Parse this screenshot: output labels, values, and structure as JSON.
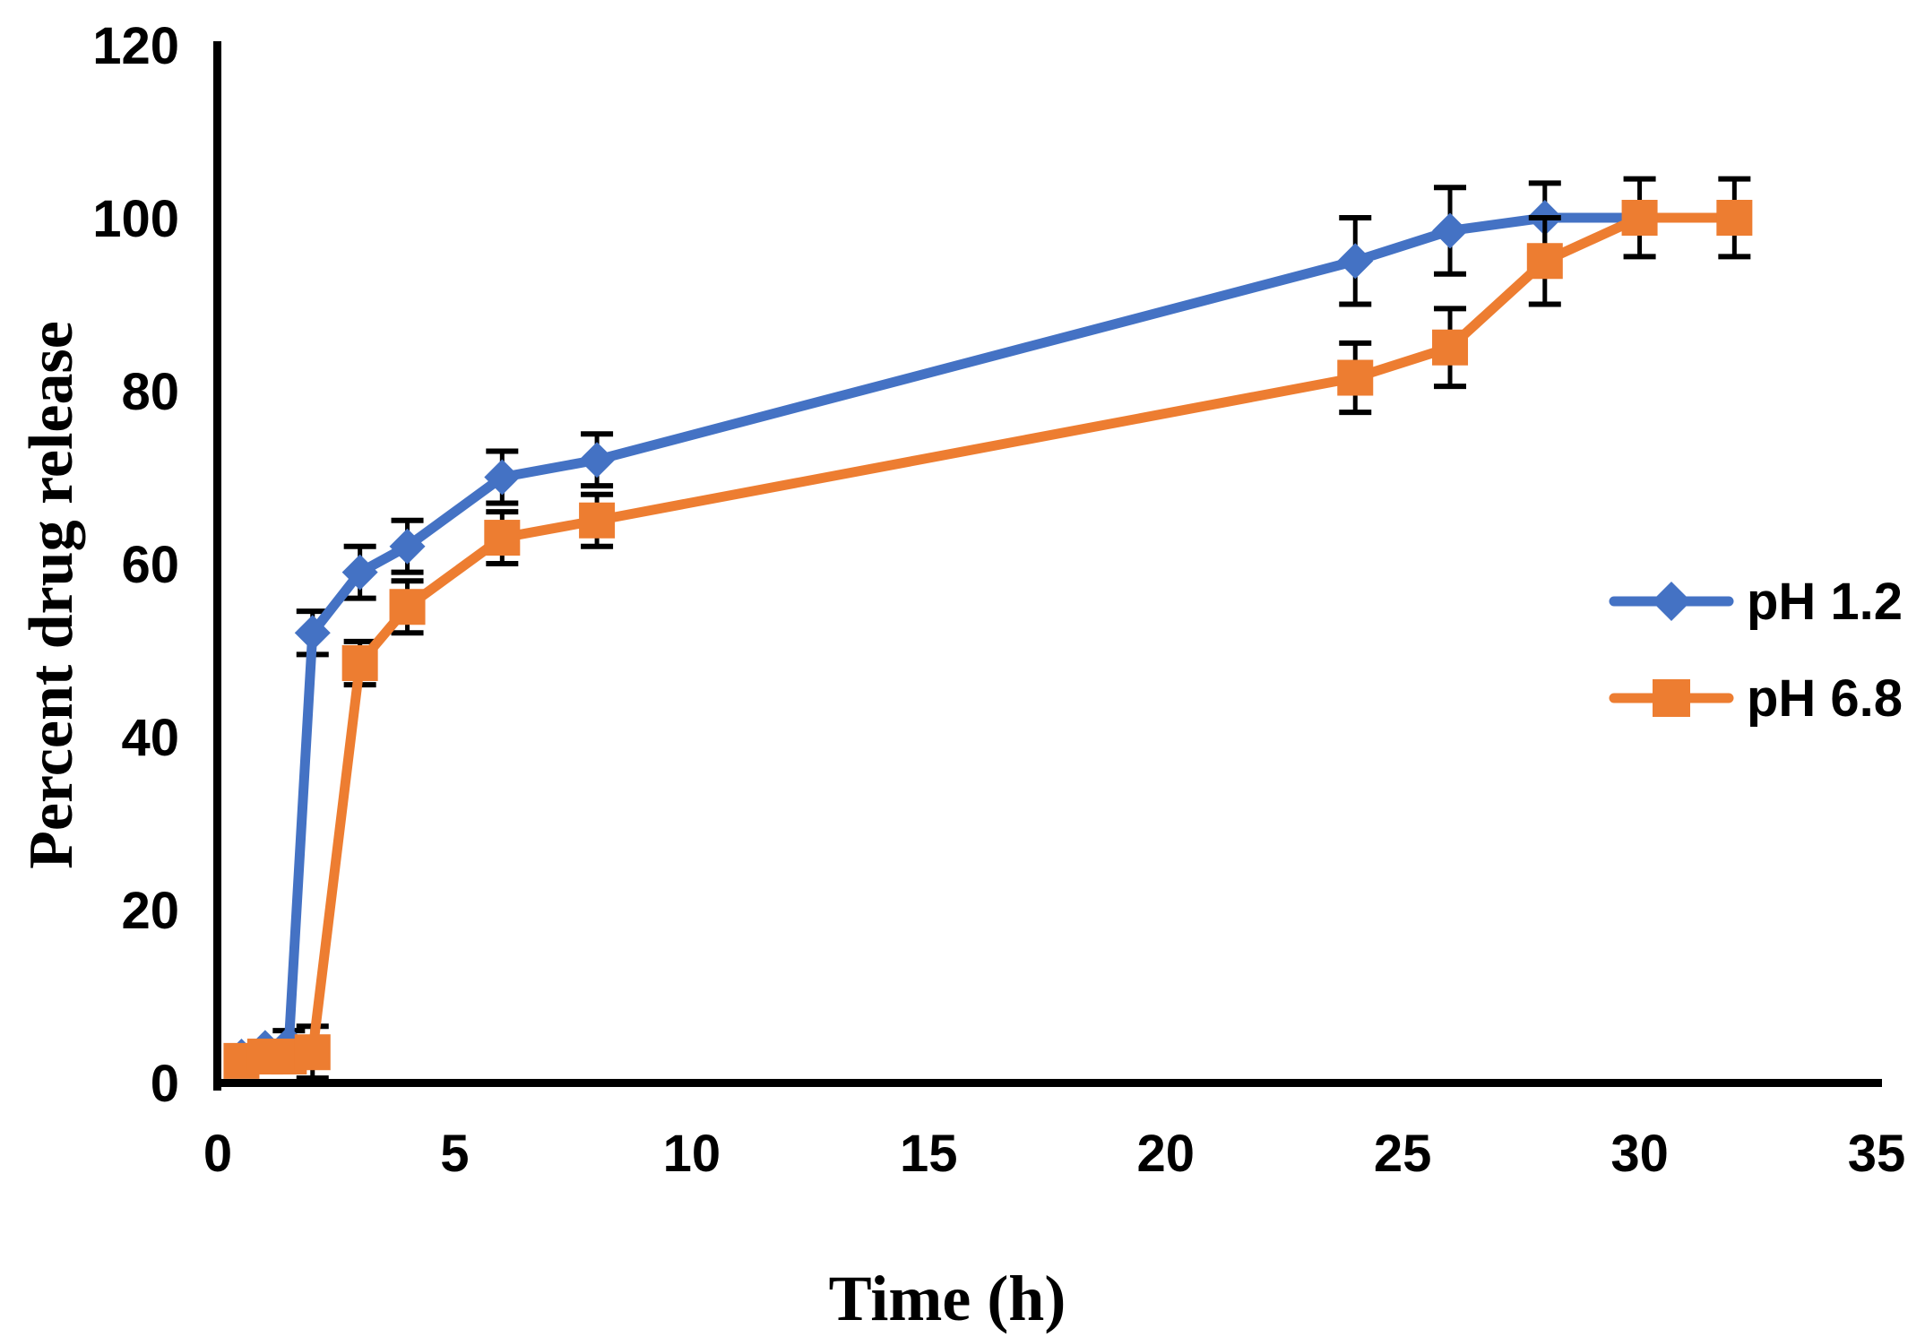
{
  "figure": {
    "background": "#ffffff",
    "axis_color": "#000000",
    "error_bar_color": "#000000",
    "tick_label_color": "#000000"
  },
  "chart_data": {
    "type": "line",
    "title": "",
    "xlabel": "Time (h)",
    "ylabel": "Percent drug release",
    "xlim": [
      0,
      35
    ],
    "ylim": [
      0,
      120
    ],
    "x_ticks": [
      0,
      5,
      10,
      15,
      20,
      25,
      30,
      35
    ],
    "y_ticks": [
      0,
      20,
      40,
      60,
      80,
      100,
      120
    ],
    "grid": false,
    "legend_position": "right-middle",
    "series": [
      {
        "name": "pH 1.2",
        "color": "#4472C4",
        "marker": "diamond",
        "x": [
          0.5,
          1.0,
          1.5,
          2.0,
          3.0,
          4.0,
          6.0,
          8.0,
          24.0,
          26.0,
          28.0,
          30.0
        ],
        "y": [
          3.0,
          4.0,
          4.5,
          52.0,
          59.0,
          62.0,
          70.0,
          72.0,
          95.0,
          98.5,
          100.0,
          100.0
        ],
        "err": [
          0,
          0,
          1.5,
          2.5,
          3.0,
          3.0,
          3.0,
          3.0,
          5.0,
          5.0,
          4.0,
          0
        ]
      },
      {
        "name": "pH 6.8",
        "color": "#ED7D31",
        "marker": "square",
        "x": [
          0.5,
          1.0,
          1.5,
          2.0,
          3.0,
          4.0,
          6.0,
          8.0,
          24.0,
          26.0,
          28.0,
          30.0,
          32.0
        ],
        "y": [
          2.5,
          3.0,
          3.0,
          3.5,
          48.5,
          55.0,
          63.0,
          65.0,
          81.5,
          85.0,
          95.0,
          100.0,
          100.0
        ],
        "err": [
          0,
          0,
          0,
          3.0,
          2.5,
          3.0,
          3.0,
          3.0,
          4.0,
          4.5,
          5.0,
          4.5,
          4.5
        ]
      }
    ]
  }
}
